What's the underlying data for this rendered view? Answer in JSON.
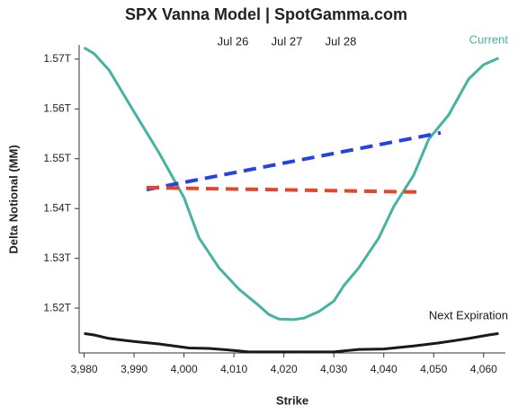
{
  "chart_data": {
    "type": "line",
    "title": "SPX Vanna Model | SpotGamma.com",
    "xlabel": "Strike",
    "ylabel": "Delta Notional (MM)",
    "annotations": [
      "Jul 26",
      "Jul 27",
      "Jul 28"
    ],
    "xlim": [
      3979,
      4064
    ],
    "xticks": [
      {
        "value": 3980,
        "label": "3,980"
      },
      {
        "value": 3990,
        "label": "3,990"
      },
      {
        "value": 4000,
        "label": "4,000"
      },
      {
        "value": 4010,
        "label": "4,010"
      },
      {
        "value": 4020,
        "label": "4,020"
      },
      {
        "value": 4030,
        "label": "4,030"
      },
      {
        "value": 4040,
        "label": "4,040"
      },
      {
        "value": 4050,
        "label": "4,050"
      },
      {
        "value": 4060,
        "label": "4,060"
      }
    ],
    "ylim": [
      1.511,
      1.5725
    ],
    "yticks": [
      {
        "value": 1.52,
        "label": "1.52T"
      },
      {
        "value": 1.53,
        "label": "1.53T"
      },
      {
        "value": 1.54,
        "label": "1.54T"
      },
      {
        "value": 1.55,
        "label": "1.55T"
      },
      {
        "value": 1.56,
        "label": "1.56T"
      },
      {
        "value": 1.57,
        "label": "1.57T"
      }
    ],
    "series": [
      {
        "name": "Current",
        "color": "#45b3a0",
        "dashed": false,
        "x": [
          3980,
          3982,
          3985,
          3990,
          3995,
          4000,
          4003,
          4007,
          4011,
          4015,
          4017,
          4019,
          4022,
          4024,
          4027,
          4030,
          4032,
          4035,
          4039,
          4042,
          4046,
          4049,
          4053,
          4057,
          4060,
          4063
        ],
        "values": [
          1.5723,
          1.5711,
          1.5678,
          1.5594,
          1.5512,
          1.5422,
          1.5341,
          1.5281,
          1.5238,
          1.5205,
          1.5187,
          1.5178,
          1.5177,
          1.518,
          1.5193,
          1.5214,
          1.5245,
          1.5281,
          1.5341,
          1.5404,
          1.5467,
          1.5539,
          1.5588,
          1.566,
          1.5689,
          1.5702
        ]
      },
      {
        "name": "Next Expiration",
        "color": "#1a1a1a",
        "dashed": false,
        "x": [
          3980,
          3982,
          3985,
          3990,
          3995,
          4001,
          4005,
          4010,
          4013,
          4017,
          4020,
          4025,
          4030,
          4035,
          4040,
          4046,
          4051,
          4057,
          4061,
          4063
        ],
        "values": [
          1.5149,
          1.5146,
          1.5139,
          1.5133,
          1.5128,
          1.512,
          1.5119,
          1.5115,
          1.5112,
          1.5112,
          1.5112,
          1.5112,
          1.5112,
          1.5117,
          1.5118,
          1.5124,
          1.513,
          1.5139,
          1.5146,
          1.5149
        ]
      },
      {
        "color": "#2443e0",
        "dashed": true,
        "x": [
          3992.5,
          4051.4
        ],
        "values": [
          1.5438,
          1.5552
        ]
      },
      {
        "color": "#e8442a",
        "dashed": true,
        "x": [
          3992.5,
          4047.5
        ],
        "values": [
          1.5442,
          1.5433
        ]
      }
    ]
  }
}
